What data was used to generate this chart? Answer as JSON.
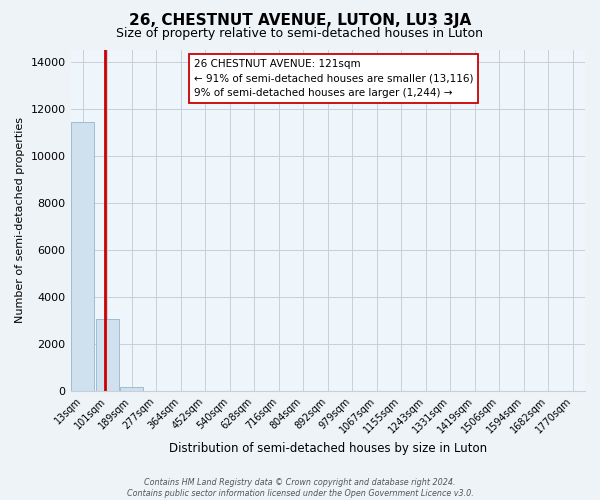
{
  "title": "26, CHESTNUT AVENUE, LUTON, LU3 3JA",
  "subtitle": "Size of property relative to semi-detached houses in Luton",
  "xlabel": "Distribution of semi-detached houses by size in Luton",
  "ylabel": "Number of semi-detached properties",
  "bin_labels": [
    "13sqm",
    "101sqm",
    "189sqm",
    "277sqm",
    "364sqm",
    "452sqm",
    "540sqm",
    "628sqm",
    "716sqm",
    "804sqm",
    "892sqm",
    "979sqm",
    "1067sqm",
    "1155sqm",
    "1243sqm",
    "1331sqm",
    "1419sqm",
    "1506sqm",
    "1594sqm",
    "1682sqm",
    "1770sqm"
  ],
  "bar_values": [
    11450,
    3050,
    160,
    0,
    0,
    0,
    0,
    0,
    0,
    0,
    0,
    0,
    0,
    0,
    0,
    0,
    0,
    0,
    0,
    0,
    0
  ],
  "bar_color": "#cfe0ee",
  "bar_edgecolor": "#9dbdd4",
  "property_line_color": "#cc0000",
  "property_line_x": 0.92,
  "ylim_max": 14500,
  "yticks": [
    0,
    2000,
    4000,
    6000,
    8000,
    10000,
    12000,
    14000
  ],
  "annotation_title": "26 CHESTNUT AVENUE: 121sqm",
  "annotation_line1": "← 91% of semi-detached houses are smaller (13,116)",
  "annotation_line2": "9% of semi-detached houses are larger (1,244) →",
  "footer_line1": "Contains HM Land Registry data © Crown copyright and database right 2024.",
  "footer_line2": "Contains public sector information licensed under the Open Government Licence v3.0.",
  "bg_color": "#eef3f8",
  "plot_bg_color": "#eef6fc",
  "grid_color": "#c8cfd8"
}
